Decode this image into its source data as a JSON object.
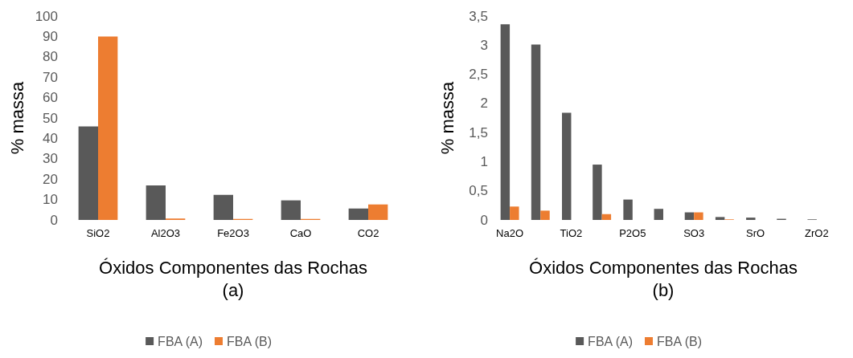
{
  "chart_data": [
    {
      "type": "bar",
      "xlabel": "Óxidos Componentes das Rochas\n(a)",
      "ylabel": "% massa",
      "categories": [
        "SiO2",
        "Al2O3",
        "Fe2O3",
        "CaO",
        "CO2"
      ],
      "series": [
        {
          "name": "FBA (A)",
          "color": "#595959",
          "values": [
            45.9,
            16.9,
            12.3,
            9.6,
            5.6
          ]
        },
        {
          "name": "FBA (B)",
          "color": "#ed7d31",
          "values": [
            90,
            0.7,
            0.5,
            0.5,
            7.6
          ]
        }
      ],
      "ylim": [
        0,
        100
      ],
      "yticks": [
        0,
        10,
        20,
        30,
        40,
        50,
        60,
        70,
        80,
        90,
        100
      ],
      "grid": false,
      "legend": "bottom"
    },
    {
      "type": "bar",
      "xlabel": "Óxidos Componentes das Rochas\n(b)",
      "ylabel": "% massa",
      "categories": [
        "Na2O",
        null,
        "TiO2",
        null,
        "P2O5",
        null,
        "SO3",
        null,
        "SrO",
        null,
        "ZrO2"
      ],
      "series": [
        {
          "name": "FBA (A)",
          "color": "#595959",
          "values": [
            3.36,
            3.01,
            1.84,
            0.95,
            0.35,
            0.19,
            0.13,
            0.05,
            0.04,
            0.02,
            0.01
          ]
        },
        {
          "name": "FBA (B)",
          "color": "#ed7d31",
          "values": [
            0.23,
            0.16,
            null,
            0.1,
            null,
            null,
            0.13,
            0.01,
            null,
            null,
            null
          ]
        }
      ],
      "ylim": [
        0,
        3.5
      ],
      "yticks": [
        0,
        {
          "value": 0.5,
          "label": "0,5"
        },
        1,
        {
          "value": 1.5,
          "label": "1,5"
        },
        2,
        {
          "value": 2.5,
          "label": "2,5"
        },
        3,
        {
          "value": 3.5,
          "label": "3,5"
        }
      ],
      "grid": false,
      "legend": "bottom"
    }
  ]
}
